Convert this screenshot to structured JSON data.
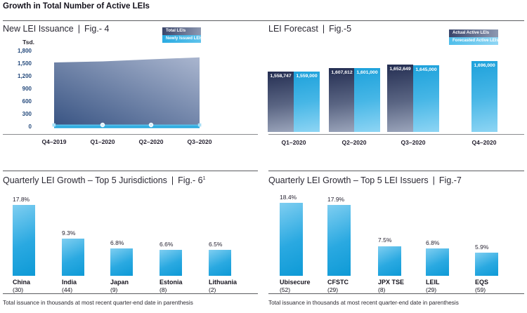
{
  "sep": "|",
  "page": {
    "title": "Growth in Total Number of Active LEIs"
  },
  "footnote": "Total issuance in thousands at most recent quarter-end date in parenthesis",
  "colors": {
    "accent_blue": "#29abe2",
    "area_gradient_dark": "#3a5584",
    "area_gradient_light": "#aab6cf",
    "dark_bar_top": "#242e52",
    "dark_bar_bottom": "#9ba5bb",
    "light_bar_deep": "#0e9ad6",
    "light_bar_pale": "#8ed5f4",
    "rule_gray": "#5b5c60",
    "navy_tick_text": "#254a7c"
  },
  "chart_data": [
    {
      "id": "fig4",
      "type": "area",
      "title": "New LEI Issuance",
      "figure_label": "Fig.- 4",
      "ylabel": "Tsd.",
      "ylim": [
        0,
        1800
      ],
      "ytick_labels": [
        "0",
        "300",
        "600",
        "900",
        "1,200",
        "1,500",
        "1,800"
      ],
      "grid": false,
      "legend_position": "top-right",
      "x": [
        "Q4–2019",
        "Q1–2020",
        "Q2–2020",
        "Q3–2020"
      ],
      "series": [
        {
          "name": "Total LEIs",
          "type": "area",
          "values": [
            1533,
            1559,
            1608,
            1653
          ]
        },
        {
          "name": "Newly Issued LEIs",
          "type": "line",
          "values": [
            30,
            35,
            35,
            30
          ]
        }
      ]
    },
    {
      "id": "fig5",
      "type": "bar",
      "title": "LEI Forecast",
      "figure_label": "Fig.-5",
      "legend_position": "top-right",
      "categories": [
        "Q1–2020",
        "Q2–2020",
        "Q3–2020",
        "Q4–2020"
      ],
      "series": [
        {
          "name": "Actual Active LEIs",
          "values": [
            1558747,
            1607612,
            1652649,
            null
          ],
          "labels": [
            "1,558,747",
            "1,607,612",
            "1,652,649",
            null
          ]
        },
        {
          "name": "Forecasted Active LEIs",
          "values": [
            1559000,
            1601000,
            1645000,
            1696000
          ],
          "labels": [
            "1,559,000",
            "1,601,000",
            "1,645,000",
            "1,696,000"
          ]
        }
      ]
    },
    {
      "id": "fig6",
      "type": "bar",
      "title": "Quarterly LEI Growth – Top 5 Jurisdictions",
      "figure_label": "Fig.- 6",
      "figure_superscript": "1",
      "categories": [
        "China",
        "India",
        "Japan",
        "Estonia",
        "Lithuania"
      ],
      "values_pct": [
        17.8,
        9.3,
        6.8,
        6.6,
        6.5
      ],
      "labels": [
        "17.8%",
        "9.3%",
        "6.8%",
        "6.6%",
        "6.5%"
      ],
      "issuance_thousands": [
        30,
        44,
        9,
        8,
        2
      ]
    },
    {
      "id": "fig7",
      "type": "bar",
      "title": "Quarterly LEI Growth – Top 5 LEI Issuers",
      "figure_label": "Fig.-7",
      "categories": [
        "Ubisecure",
        "CFSTC",
        "JPX TSE",
        "LEIL",
        "EQS"
      ],
      "values_pct": [
        18.4,
        17.9,
        7.5,
        6.8,
        5.9
      ],
      "labels": [
        "18.4%",
        "17.9%",
        "7.5%",
        "6.8%",
        "5.9%"
      ],
      "issuance_thousands": [
        52,
        29,
        8,
        29,
        59
      ]
    }
  ]
}
